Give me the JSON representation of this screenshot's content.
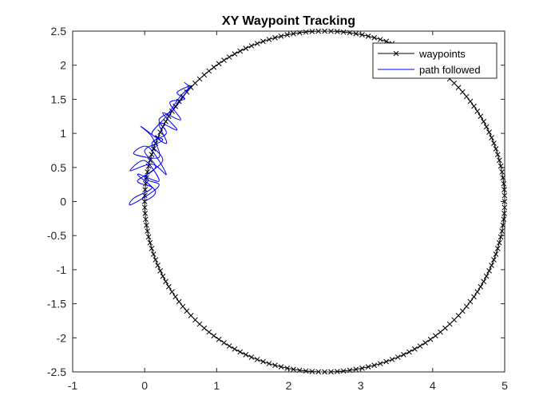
{
  "chart_data": {
    "type": "line",
    "title": "XY Waypoint Tracking",
    "xlabel": "",
    "ylabel": "",
    "xlim": [
      -1,
      5
    ],
    "ylim": [
      -2.5,
      2.5
    ],
    "xticks": [
      -1,
      0,
      1,
      2,
      3,
      4,
      5
    ],
    "yticks": [
      -2.5,
      -2,
      -1.5,
      -1,
      -0.5,
      0,
      0.5,
      1,
      1.5,
      2,
      2.5
    ],
    "xtick_labels": [
      "-1",
      "0",
      "1",
      "2",
      "3",
      "4",
      "5"
    ],
    "ytick_labels": [
      "-2.5",
      "-2",
      "-1.5",
      "-1",
      "-0.5",
      "0",
      "0.5",
      "1",
      "1.5",
      "2",
      "2.5"
    ],
    "grid": false,
    "legend_position": "top-right",
    "series": [
      {
        "name": "waypoints",
        "color": "#000000",
        "marker": "x",
        "shape": "circle",
        "center": [
          2.5,
          0
        ],
        "radius": 2.5,
        "count": 180
      },
      {
        "name": "path followed",
        "color": "#0000ff",
        "marker": "none",
        "points": [
          [
            0.0,
            0.0
          ],
          [
            0.15,
            0.15
          ],
          [
            -0.1,
            0.4
          ],
          [
            0.2,
            0.3
          ],
          [
            0.0,
            0.6
          ],
          [
            -0.2,
            0.45
          ],
          [
            0.1,
            0.55
          ],
          [
            0.3,
            0.4
          ],
          [
            0.05,
            0.8
          ],
          [
            -0.15,
            0.7
          ],
          [
            0.2,
            0.65
          ],
          [
            0.1,
            0.95
          ],
          [
            -0.05,
            1.1
          ],
          [
            0.3,
            0.85
          ],
          [
            0.2,
            1.15
          ],
          [
            0.45,
            1.05
          ],
          [
            0.25,
            1.3
          ],
          [
            0.5,
            1.2
          ],
          [
            0.35,
            1.45
          ],
          [
            0.55,
            1.5
          ],
          [
            0.45,
            1.6
          ],
          [
            0.65,
            1.7
          ],
          [
            0.5,
            1.55
          ],
          [
            0.3,
            1.25
          ],
          [
            0.1,
            1.0
          ],
          [
            0.25,
            0.9
          ],
          [
            0.0,
            0.75
          ],
          [
            0.15,
            0.5
          ],
          [
            -0.1,
            0.3
          ],
          [
            0.1,
            0.2
          ],
          [
            -0.15,
            0.05
          ],
          [
            -0.2,
            -0.05
          ],
          [
            0.05,
            0.1
          ],
          [
            0.2,
            0.25
          ],
          [
            0.0,
            0.35
          ],
          [
            0.25,
            0.6
          ],
          [
            0.1,
            0.85
          ],
          [
            0.3,
            1.0
          ],
          [
            0.2,
            1.2
          ],
          [
            0.4,
            1.35
          ],
          [
            0.6,
            1.65
          ],
          [
            0.55,
            1.75
          ]
        ]
      }
    ]
  }
}
